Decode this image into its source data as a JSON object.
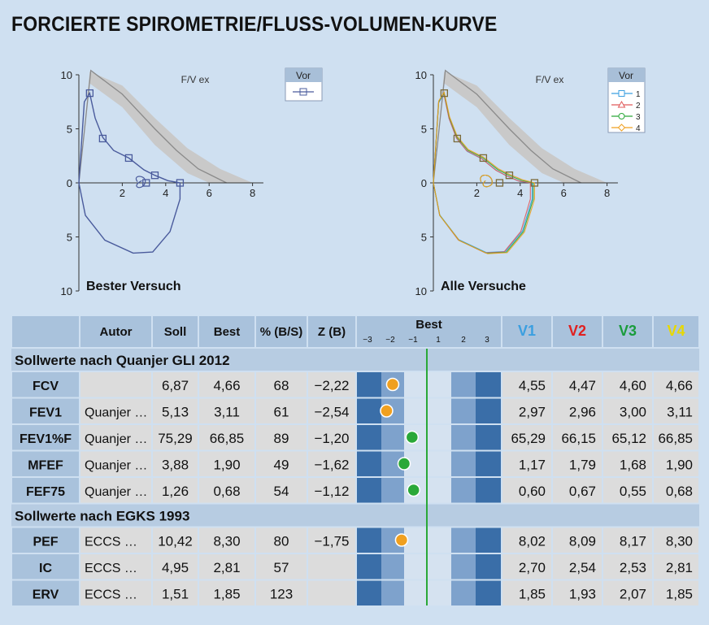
{
  "title": "FORCIERTE SPIROMETRIE/FLUSS-VOLUMEN-KURVE",
  "colors": {
    "background": "#cfe0f1",
    "curve": "#4a5b9c",
    "band": "#c9c9c9",
    "v1": "#3b9fe0",
    "v2": "#e02020",
    "v3": "#1a9c3c",
    "v4": "#e8d800",
    "dot_orange": "#f0a020",
    "dot_green": "#2aa838",
    "zline": "#2aa838"
  },
  "chart_data": [
    {
      "type": "line",
      "title": "F/V ex",
      "caption": "Bester Versuch",
      "x_ticks": [
        "2",
        "4",
        "6",
        "8"
      ],
      "y_ticks": [
        "10",
        "5",
        "0",
        "5",
        "10"
      ],
      "xlim": [
        0,
        8.5
      ],
      "ylim": [
        -10,
        10
      ],
      "legend": {
        "title": "Vor",
        "entries": []
      },
      "reference_band_upper": [
        [
          0,
          0
        ],
        [
          0.5,
          10.3
        ],
        [
          2,
          9
        ],
        [
          3.5,
          6
        ],
        [
          5,
          3.2
        ],
        [
          6.5,
          1.3
        ],
        [
          8,
          0
        ]
      ],
      "reference_band_lower": [
        [
          0,
          0
        ],
        [
          0.5,
          9.2
        ],
        [
          2,
          7
        ],
        [
          3.5,
          3.5
        ],
        [
          5,
          0.9
        ],
        [
          6,
          0
        ]
      ],
      "reference_mean": [
        [
          0,
          0
        ],
        [
          0.55,
          10.4
        ],
        [
          2,
          8.2
        ],
        [
          3.5,
          5
        ],
        [
          4.5,
          3
        ],
        [
          5.5,
          1.3
        ],
        [
          6.8,
          0
        ]
      ],
      "series": [
        {
          "name": "Vor",
          "color": "#4a5b9c",
          "expiratory": [
            [
              0,
              0
            ],
            [
              0.25,
              7.5
            ],
            [
              0.5,
              8.3
            ],
            [
              0.75,
              6
            ],
            [
              1.1,
              4.2
            ],
            [
              1.6,
              3
            ],
            [
              2.3,
              2.3
            ],
            [
              3,
              1.2
            ],
            [
              3.5,
              0.7
            ],
            [
              4.1,
              0.2
            ],
            [
              4.66,
              0
            ]
          ],
          "inspiratory": [
            [
              0,
              0
            ],
            [
              0.3,
              -3
            ],
            [
              1.2,
              -5.3
            ],
            [
              2.5,
              -6.5
            ],
            [
              3.4,
              -6.4
            ],
            [
              4.2,
              -4.5
            ],
            [
              4.66,
              -1.5
            ],
            [
              4.66,
              0
            ]
          ],
          "markers": [
            [
              0.5,
              8.3
            ],
            [
              1.1,
              4.1
            ],
            [
              2.3,
              2.3
            ],
            [
              3.1,
              0
            ],
            [
              3.5,
              0.7
            ],
            [
              4.66,
              0
            ]
          ]
        }
      ]
    },
    {
      "type": "line",
      "title": "F/V ex",
      "caption": "Alle Versuche",
      "x_ticks": [
        "2",
        "4",
        "6",
        "8"
      ],
      "y_ticks": [
        "10",
        "5",
        "0",
        "5",
        "10"
      ],
      "xlim": [
        0,
        8.5
      ],
      "ylim": [
        -10,
        10
      ],
      "legend": {
        "title": "Vor",
        "entries": [
          "1",
          "2",
          "3",
          "4"
        ]
      },
      "series": [
        {
          "name": "1",
          "color": "#3b9fe0",
          "fvc": 4.55
        },
        {
          "name": "2",
          "color": "#e05a5a",
          "fvc": 4.47
        },
        {
          "name": "3",
          "color": "#2aa838",
          "fvc": 4.6
        },
        {
          "name": "4",
          "color": "#f0a020",
          "fvc": 4.66
        }
      ]
    }
  ],
  "table": {
    "headers": [
      "",
      "Autor",
      "Soll",
      "Best",
      "% (B/S)",
      "Z (B)",
      "Best",
      "V1",
      "V2",
      "V3",
      "V4"
    ],
    "zscale_ticks": [
      "−3",
      "−2",
      "−1",
      "1",
      "2",
      "3"
    ],
    "sections": [
      {
        "title": "Sollwerte nach Quanjer GLI 2012",
        "rows": [
          {
            "param": "FCV",
            "autor": "",
            "soll": "6,87",
            "best": "4,66",
            "pct": "68",
            "z": "−2,22",
            "zval": -2.22,
            "dot": "orange",
            "v1": "4,55",
            "v2": "4,47",
            "v3": "4,60",
            "v4": "4,66"
          },
          {
            "param": "FEV1",
            "autor": "Quanjer …",
            "soll": "5,13",
            "best": "3,11",
            "pct": "61",
            "z": "−2,54",
            "zval": -2.54,
            "dot": "orange",
            "v1": "2,97",
            "v2": "2,96",
            "v3": "3,00",
            "v4": "3,11"
          },
          {
            "param": "FEV1%F",
            "autor": "Quanjer …",
            "soll": "75,29",
            "best": "66,85",
            "pct": "89",
            "z": "−1,20",
            "zval": -1.2,
            "dot": "green",
            "v1": "65,29",
            "v2": "66,15",
            "v3": "65,12",
            "v4": "66,85"
          },
          {
            "param": "MFEF",
            "autor": "Quanjer …",
            "soll": "3,88",
            "best": "1,90",
            "pct": "49",
            "z": "−1,62",
            "zval": -1.62,
            "dot": "green",
            "v1": "1,17",
            "v2": "1,79",
            "v3": "1,68",
            "v4": "1,90"
          },
          {
            "param": "FEF75",
            "autor": "Quanjer …",
            "soll": "1,26",
            "best": "0,68",
            "pct": "54",
            "z": "−1,12",
            "zval": -1.12,
            "dot": "green",
            "v1": "0,60",
            "v2": "0,67",
            "v3": "0,55",
            "v4": "0,68"
          }
        ]
      },
      {
        "title": "Sollwerte nach EGKS 1993",
        "rows": [
          {
            "param": "PEF",
            "autor": "ECCS …",
            "soll": "10,42",
            "best": "8,30",
            "pct": "80",
            "z": "−1,75",
            "zval": -1.75,
            "dot": "orange",
            "v1": "8,02",
            "v2": "8,09",
            "v3": "8,17",
            "v4": "8,30"
          },
          {
            "param": "IC",
            "autor": "ECCS …",
            "soll": "4,95",
            "best": "2,81",
            "pct": "57",
            "z": "",
            "zval": null,
            "dot": "",
            "v1": "2,70",
            "v2": "2,54",
            "v3": "2,53",
            "v4": "2,81"
          },
          {
            "param": "ERV",
            "autor": "ECCS …",
            "soll": "1,51",
            "best": "1,85",
            "pct": "123",
            "z": "",
            "zval": null,
            "dot": "",
            "v1": "1,85",
            "v2": "1,93",
            "v3": "2,07",
            "v4": "1,85"
          }
        ]
      }
    ]
  }
}
